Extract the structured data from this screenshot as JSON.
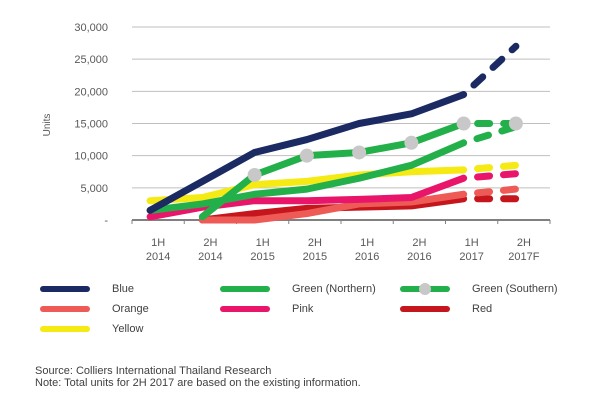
{
  "chart_data": {
    "type": "line",
    "title": "",
    "xlabel": "",
    "ylabel": "Units",
    "ylim": [
      0,
      30000
    ],
    "yticks": [
      0,
      5000,
      10000,
      15000,
      20000,
      25000,
      30000
    ],
    "ytick_labels": [
      "-",
      "5,000",
      "10,000",
      "15,000",
      "20,000",
      "25,000",
      "30,000"
    ],
    "grid": true,
    "categories": [
      [
        "1H",
        "2014"
      ],
      [
        "2H",
        "2014"
      ],
      [
        "1H",
        "2015"
      ],
      [
        "2H",
        "2015"
      ],
      [
        "1H",
        "2016"
      ],
      [
        "2H",
        "2016"
      ],
      [
        "1H",
        "2017"
      ],
      [
        "2H",
        "2017F"
      ]
    ],
    "forecast_from_index": 6,
    "series": [
      {
        "name": "Blue",
        "color": "#1b2a63",
        "markers": false,
        "values": [
          1500,
          6000,
          10500,
          12500,
          15000,
          16500,
          19500,
          27000
        ]
      },
      {
        "name": "Green (Northern)",
        "color": "#23b04a",
        "markers": false,
        "values": [
          1500,
          2500,
          4000,
          4800,
          6500,
          8500,
          12000,
          14500
        ]
      },
      {
        "name": "Green (Southern)",
        "color": "#23b04a",
        "markers": true,
        "values": [
          null,
          500,
          7000,
          10000,
          10500,
          12000,
          15000,
          15000
        ]
      },
      {
        "name": "Orange",
        "color": "#ee5a55",
        "markers": false,
        "values": [
          null,
          0,
          0,
          1000,
          2500,
          2800,
          4000,
          4800
        ]
      },
      {
        "name": "Pink",
        "color": "#e8156a",
        "markers": false,
        "values": [
          500,
          2000,
          3000,
          3000,
          3200,
          3500,
          6500,
          7200
        ]
      },
      {
        "name": "Red",
        "color": "#c4161c",
        "markers": false,
        "values": [
          null,
          0,
          1000,
          1800,
          2000,
          2200,
          3300,
          3300
        ]
      },
      {
        "name": "Yellow",
        "color": "#f5ea14",
        "markers": false,
        "values": [
          3000,
          3500,
          5500,
          6000,
          7000,
          7500,
          7800,
          8500
        ]
      }
    ],
    "legend": {
      "position": "bottom",
      "entries": [
        "Blue",
        "Green (Northern)",
        "Green (Southern)",
        "Orange",
        "Pink",
        "Red",
        "Yellow"
      ]
    }
  },
  "legend_labels": {
    "blue": "Blue",
    "green_northern": "Green (Northern)",
    "green_southern": "Green (Southern)",
    "orange": "Orange",
    "pink": "Pink",
    "red": "Red",
    "yellow": "Yellow"
  },
  "footer": {
    "source": "Source: Colliers International Thailand Research",
    "note": "Note: Total units for 2H 2017 are based on the existing information."
  }
}
